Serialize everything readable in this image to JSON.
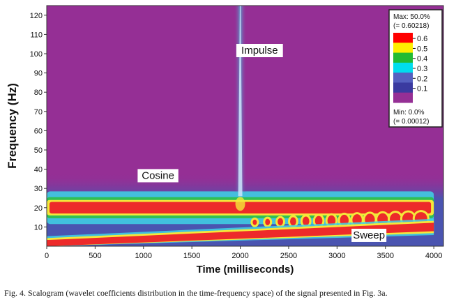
{
  "caption": "Fig. 4. Scalogram (wavelet coefficients distribution in the time-frequency space) of the signal presented in Fig. 3a.",
  "chart_data": {
    "type": "heatmap",
    "xlabel": "Time (milliseconds)",
    "ylabel": "Frequency  (Hz)",
    "xlim": [
      0,
      4100
    ],
    "ylim": [
      0,
      125
    ],
    "x_ticks": [
      "0",
      "500",
      "1000",
      "1500",
      "2000",
      "2500",
      "3000",
      "3500",
      "4000"
    ],
    "y_ticks": [
      "10",
      "20",
      "30",
      "40",
      "50",
      "60",
      "70",
      "80",
      "90",
      "100",
      "110",
      "120"
    ],
    "annotations": [
      {
        "text": "Impulse",
        "x": 2200,
        "y": 100
      },
      {
        "text": "Cosine",
        "x": 1150,
        "y": 35
      },
      {
        "text": "Sweep",
        "x": 3330,
        "y": 4
      }
    ],
    "components": {
      "cosine": {
        "frequency": 20,
        "t_start": 0,
        "t_end": 4000
      },
      "impulse": {
        "time": 2000
      },
      "sweep": {
        "t_start": 0,
        "t_end": 4000,
        "f_start": 1,
        "f_end": 10
      }
    },
    "legend": {
      "position": "top-right",
      "max_label": "Max: 50.0%",
      "max_value": "(= 0.60218)",
      "min_label": "Min: 0.0%",
      "min_value": "(= 0.00012)",
      "ticks": [
        "0.6",
        "0.5",
        "0.4",
        "0.3",
        "0.2",
        "0.1"
      ],
      "colors": [
        "#ff0000",
        "#ffee00",
        "#22bb33",
        "#00ddee",
        "#5560c0",
        "#3a3aa0",
        "#952f95"
      ]
    },
    "colors": {
      "background": "#952f95",
      "band": "#4a54b0",
      "core": "#ed2a2a",
      "edge": "#f5e83a",
      "glow": "#3fd4e6"
    }
  }
}
